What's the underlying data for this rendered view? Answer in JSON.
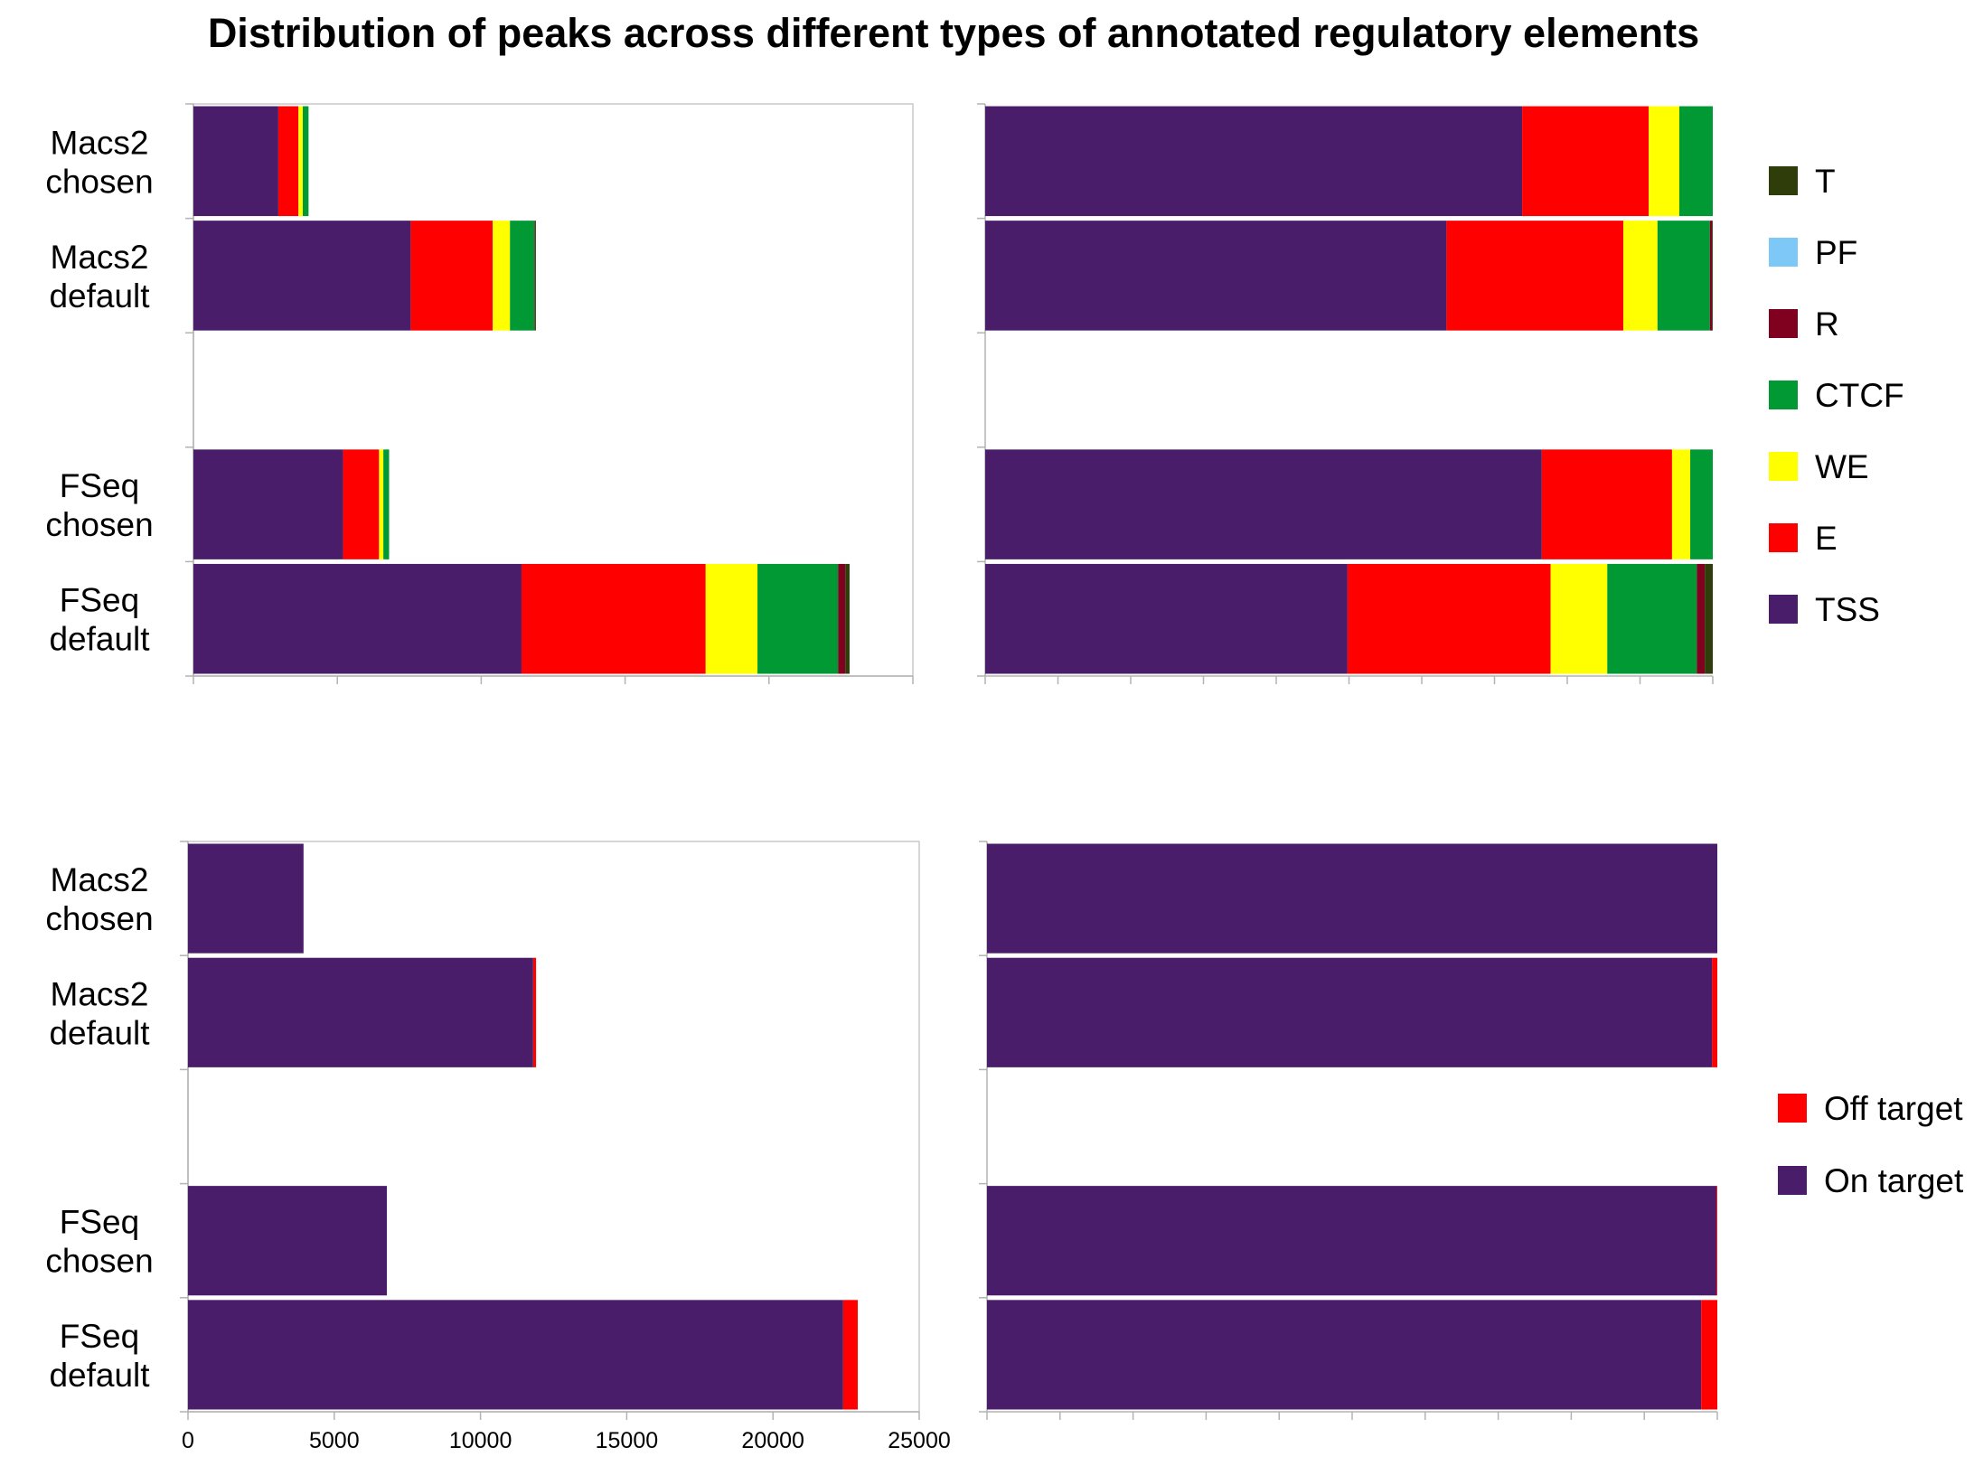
{
  "title": "Distribution of peaks across different types of annotated regulatory elements",
  "colors": {
    "TSS": "#4a1d6b",
    "E": "#ff0000",
    "WE": "#ffff00",
    "CTCF": "#009933",
    "R": "#800020",
    "PF": "#7ec8f8",
    "T": "#2e3d0a",
    "On target": "#4a1d6b",
    "Off target": "#ff0000"
  },
  "legend_top": [
    "T",
    "PF",
    "R",
    "CTCF",
    "WE",
    "E",
    "TSS"
  ],
  "legend_bottom": [
    "Off target",
    "On target"
  ],
  "chart_data": [
    {
      "id": "top-left",
      "type": "bar",
      "orientation": "horizontal",
      "stacked": true,
      "categories": [
        "Macs2 chosen",
        "Macs2 default",
        "",
        "FSeq chosen",
        "FSeq default"
      ],
      "series": [
        {
          "name": "TSS",
          "values": [
            2950,
            7550,
            0,
            5200,
            11400
          ]
        },
        {
          "name": "E",
          "values": [
            700,
            2850,
            0,
            1250,
            6400
          ]
        },
        {
          "name": "WE",
          "values": [
            150,
            600,
            0,
            150,
            1800
          ]
        },
        {
          "name": "CTCF",
          "values": [
            200,
            850,
            0,
            200,
            2800
          ]
        },
        {
          "name": "R",
          "values": [
            0,
            20,
            0,
            0,
            250
          ]
        },
        {
          "name": "PF",
          "values": [
            0,
            0,
            0,
            0,
            0
          ]
        },
        {
          "name": "T",
          "values": [
            0,
            30,
            0,
            0,
            150
          ]
        }
      ],
      "xlim": [
        0,
        25000
      ],
      "xticks": [
        0,
        5000,
        10000,
        15000,
        20000,
        25000
      ],
      "show_tick_labels": false
    },
    {
      "id": "top-right",
      "type": "bar",
      "orientation": "horizontal",
      "stacked": true,
      "percent": true,
      "categories": [
        "Macs2 chosen",
        "Macs2 default",
        "",
        "FSeq chosen",
        "FSeq default"
      ],
      "series": [
        {
          "name": "TSS",
          "values": [
            73.8,
            63.4,
            0,
            76.5,
            49.8
          ]
        },
        {
          "name": "E",
          "values": [
            17.4,
            24.3,
            0,
            17.9,
            27.9
          ]
        },
        {
          "name": "WE",
          "values": [
            4.2,
            4.7,
            0,
            2.5,
            7.8
          ]
        },
        {
          "name": "CTCF",
          "values": [
            4.6,
            7.2,
            0,
            3.1,
            12.3
          ]
        },
        {
          "name": "R",
          "values": [
            0,
            0.3,
            0,
            0,
            1.1
          ]
        },
        {
          "name": "PF",
          "values": [
            0,
            0,
            0,
            0,
            0
          ]
        },
        {
          "name": "T",
          "values": [
            0,
            0.1,
            0,
            0,
            1.1
          ]
        }
      ],
      "xlim": [
        0,
        100
      ],
      "xticks": [
        0,
        10,
        20,
        30,
        40,
        50,
        60,
        70,
        80,
        90,
        100
      ],
      "show_tick_labels": false
    },
    {
      "id": "bottom-left",
      "type": "bar",
      "orientation": "horizontal",
      "stacked": true,
      "categories": [
        "Macs2 chosen",
        "Macs2 default",
        "",
        "FSeq chosen",
        "FSeq default"
      ],
      "series": [
        {
          "name": "On target",
          "values": [
            3950,
            11800,
            0,
            6800,
            22400
          ]
        },
        {
          "name": "Off target",
          "values": [
            0,
            100,
            0,
            0,
            500
          ]
        }
      ],
      "xlim": [
        0,
        25000
      ],
      "xticks": [
        0,
        5000,
        10000,
        15000,
        20000,
        25000
      ],
      "show_tick_labels": true
    },
    {
      "id": "bottom-right",
      "type": "bar",
      "orientation": "horizontal",
      "stacked": true,
      "percent": true,
      "categories": [
        "Macs2 chosen",
        "Macs2 default",
        "",
        "FSeq chosen",
        "FSeq default"
      ],
      "series": [
        {
          "name": "On target",
          "values": [
            100,
            99.3,
            0,
            99.9,
            97.8
          ]
        },
        {
          "name": "Off target",
          "values": [
            0,
            0.7,
            0,
            0.1,
            2.2
          ]
        }
      ],
      "xlim": [
        0,
        100
      ],
      "xticks": [
        0,
        10,
        20,
        30,
        40,
        50,
        60,
        70,
        80,
        90,
        100
      ],
      "show_tick_labels": false
    }
  ]
}
